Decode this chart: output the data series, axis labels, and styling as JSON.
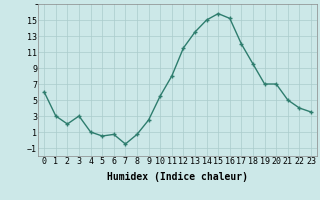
{
  "xlabel": "Humidex (Indice chaleur)",
  "ylabel": "",
  "x": [
    0,
    1,
    2,
    3,
    4,
    5,
    6,
    7,
    8,
    9,
    10,
    11,
    12,
    13,
    14,
    15,
    16,
    17,
    18,
    19,
    20,
    21,
    22,
    23
  ],
  "y": [
    6,
    3,
    2,
    3,
    1,
    0.5,
    0.7,
    -0.5,
    0.7,
    2.5,
    5.5,
    8,
    11.5,
    13.5,
    15,
    15.8,
    15.2,
    12,
    9.5,
    7,
    7,
    5,
    4,
    3.5
  ],
  "line_color": "#2e7d6e",
  "marker": "+",
  "marker_size": 3,
  "marker_lw": 1.0,
  "line_width": 1.0,
  "bg_color": "#cce8e8",
  "grid_color": "#aacccc",
  "ylim": [
    -2,
    17
  ],
  "xlim": [
    -0.5,
    23.5
  ],
  "yticks": [
    -1,
    1,
    3,
    5,
    7,
    9,
    11,
    13,
    15
  ],
  "xtick_labels": [
    "0",
    "1",
    "2",
    "3",
    "4",
    "5",
    "6",
    "7",
    "8",
    "9",
    "10",
    "11",
    "12",
    "13",
    "14",
    "15",
    "16",
    "17",
    "18",
    "19",
    "20",
    "21",
    "22",
    "23"
  ],
  "xlabel_fontsize": 7,
  "tick_fontsize": 6,
  "font_family": "monospace"
}
